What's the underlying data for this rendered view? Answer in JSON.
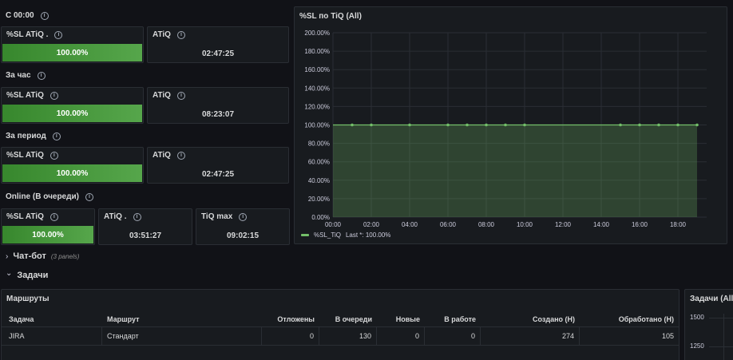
{
  "colors": {
    "background": "#111217",
    "panel": "#181b1f",
    "border": "#2a2e34",
    "gauge_green": "#56a64b",
    "series_green": "#73bf69",
    "text": "#ccccdc"
  },
  "sections": {
    "since_midnight": "С 00:00",
    "per_hour": "За час",
    "per_period": "За период",
    "online": "Online (В очереди)"
  },
  "stats": {
    "midnight_sl": {
      "title": "%SL ATiQ .",
      "value": "100.00%",
      "level": 100
    },
    "midnight_atiq": {
      "title": "ATiQ",
      "value": "02:47:25"
    },
    "hour_sl": {
      "title": "%SL ATiQ",
      "value": "100.00%",
      "level": 100
    },
    "hour_atiq": {
      "title": "ATiQ",
      "value": "08:23:07"
    },
    "period_sl": {
      "title": "%SL ATiQ",
      "value": "100.00%",
      "level": 100
    },
    "period_atiq": {
      "title": "ATiQ",
      "value": "02:47:25"
    },
    "online_sl": {
      "title": "%SL ATiQ",
      "value": "100.00%",
      "level": 100
    },
    "online_atiq": {
      "title": "ATiQ .",
      "value": "03:51:27"
    },
    "online_tiq_max": {
      "title": "TiQ max",
      "value": "09:02:15"
    }
  },
  "graph_panel": {
    "title": "%SL по TiQ (All)",
    "legend_label": "%SL_TiQ",
    "legend_last": "Last *: 100.00%"
  },
  "chart_data": {
    "type": "area",
    "title": "%SL по TiQ (All)",
    "x_ticks": [
      "00:00",
      "02:00",
      "04:00",
      "06:00",
      "08:00",
      "10:00",
      "12:00",
      "14:00",
      "16:00",
      "18:00"
    ],
    "y_ticks": [
      "0.00%",
      "20.00%",
      "40.00%",
      "60.00%",
      "80.00%",
      "100.00%",
      "120.00%",
      "140.00%",
      "160.00%",
      "180.00%",
      "200.00%"
    ],
    "xlim": [
      0,
      19.5
    ],
    "ylim": [
      0,
      200
    ],
    "grid": true,
    "legend_position": "bottom-left",
    "series": [
      {
        "name": "%SL_TiQ",
        "x": [
          0,
          1,
          2,
          4,
          6,
          7,
          8,
          9,
          10,
          15,
          16,
          17,
          18,
          19
        ],
        "values": [
          100,
          100,
          100,
          100,
          100,
          100,
          100,
          100,
          100,
          100,
          100,
          100,
          100,
          100
        ]
      }
    ]
  },
  "rows": {
    "chatbot": {
      "title": "Чат-бот",
      "subtitle": "(3 panels)"
    },
    "tasks": {
      "title": "Задачи"
    }
  },
  "routes_table": {
    "title": "Маршруты",
    "columns": [
      "Задача",
      "Маршрут",
      "Отложены",
      "В очереди",
      "Новые",
      "В работе",
      "Создано (Н)",
      "Обработано (Н)"
    ],
    "rows": [
      [
        "JIRA",
        "Стандарт",
        "0",
        "130",
        "0",
        "0",
        "274",
        "105"
      ]
    ]
  },
  "tasks_graph": {
    "title": "Задачи (All)",
    "y_ticks": [
      "1500",
      "1250"
    ]
  },
  "icons": {
    "info": "i",
    "chevron_right": "›",
    "chevron_down": "⌄"
  }
}
